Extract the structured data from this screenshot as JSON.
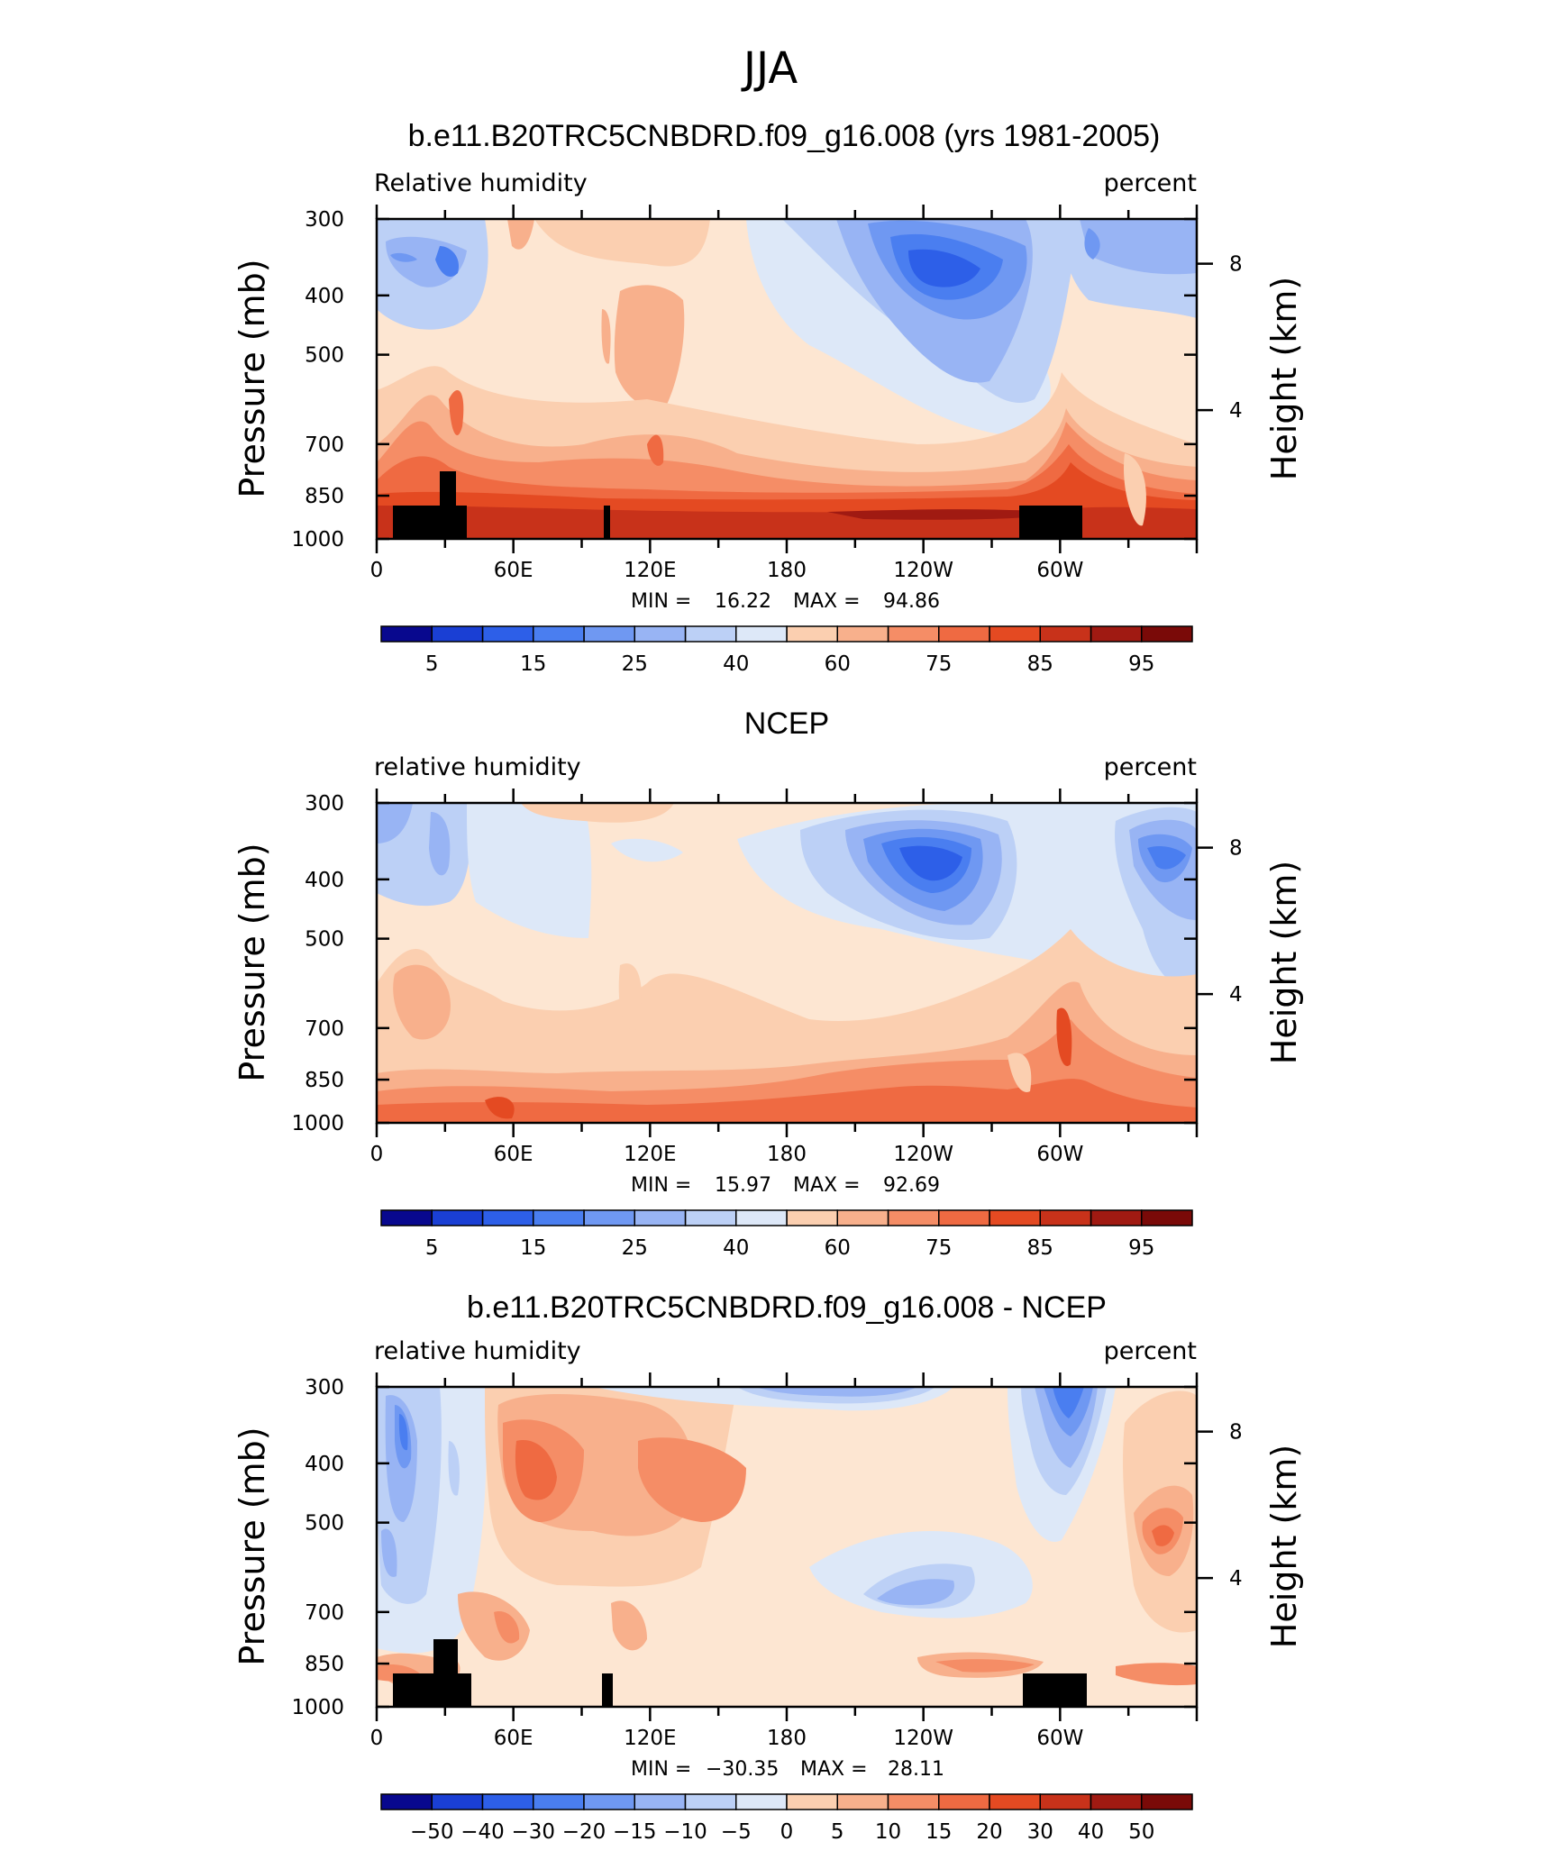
{
  "figure_title": "JJA",
  "chart_data": [
    {
      "type": "heatmap",
      "title": "b.e11.B20TRC5CNBDRD.f09_g16.008 (yrs 1981-2005)",
      "left_string": "Relative  humidity",
      "right_string": "percent",
      "ylabel": "Pressure  (mb)",
      "ylabel_right": "Height  (km)",
      "x_ticks": [
        "0",
        "60E",
        "120E",
        "180",
        "120W",
        "60W"
      ],
      "y_ticks": [
        "300",
        "400",
        "500",
        "700",
        "850",
        "1000"
      ],
      "y_ticks_right": [
        "4",
        "8"
      ],
      "min_label": "MIN =",
      "min_value": "16.22",
      "max_label": "MAX =",
      "max_value": "94.86",
      "colorbar_labels": [
        "5",
        "15",
        "25",
        "40",
        "60",
        "75",
        "85",
        "95"
      ],
      "colorbar_colors": [
        "#08088e",
        "#1a3fd4",
        "#2d5fe8",
        "#4a7ef0",
        "#6f98f2",
        "#98b4f4",
        "#bcd0f6",
        "#dde8f8",
        "#fde6d2",
        "#fbcfb0",
        "#f8b08c",
        "#f58d66",
        "#ef6a42",
        "#e44a22",
        "#c8321a",
        "#a01a12",
        "#7a0a08"
      ],
      "x_range": [
        0,
        360
      ],
      "y_range": [
        300,
        1000
      ],
      "has_terrain": true
    },
    {
      "type": "heatmap",
      "title": "NCEP",
      "left_string": "relative  humidity",
      "right_string": "percent",
      "ylabel": "Pressure  (mb)",
      "ylabel_right": "Height  (km)",
      "x_ticks": [
        "0",
        "60E",
        "120E",
        "180",
        "120W",
        "60W"
      ],
      "y_ticks": [
        "300",
        "400",
        "500",
        "700",
        "850",
        "1000"
      ],
      "y_ticks_right": [
        "4",
        "8"
      ],
      "min_label": "MIN =",
      "min_value": "15.97",
      "max_label": "MAX =",
      "max_value": "92.69",
      "colorbar_labels": [
        "5",
        "15",
        "25",
        "40",
        "60",
        "75",
        "85",
        "95"
      ],
      "colorbar_colors": [
        "#08088e",
        "#1a3fd4",
        "#2d5fe8",
        "#4a7ef0",
        "#6f98f2",
        "#98b4f4",
        "#bcd0f6",
        "#dde8f8",
        "#fde6d2",
        "#fbcfb0",
        "#f8b08c",
        "#f58d66",
        "#ef6a42",
        "#e44a22",
        "#c8321a",
        "#a01a12",
        "#7a0a08"
      ],
      "x_range": [
        0,
        360
      ],
      "y_range": [
        300,
        1000
      ],
      "has_terrain": false
    },
    {
      "type": "heatmap",
      "title": "b.e11.B20TRC5CNBDRD.f09_g16.008 - NCEP",
      "left_string": "relative  humidity",
      "right_string": "percent",
      "ylabel": "Pressure  (mb)",
      "ylabel_right": "Height  (km)",
      "x_ticks": [
        "0",
        "60E",
        "120E",
        "180",
        "120W",
        "60W"
      ],
      "y_ticks": [
        "300",
        "400",
        "500",
        "700",
        "850",
        "1000"
      ],
      "y_ticks_right": [
        "4",
        "8"
      ],
      "min_label": "MIN =",
      "min_value": "−30.35",
      "max_label": "MAX =",
      "max_value": "28.11",
      "colorbar_labels": [
        "−50",
        "−40",
        "−30",
        "−20",
        "−15",
        "−10",
        "−5",
        "0",
        "5",
        "10",
        "15",
        "20",
        "30",
        "40",
        "50"
      ],
      "colorbar_colors": [
        "#08088e",
        "#1a3fd4",
        "#2d5fe8",
        "#4a7ef0",
        "#6f98f2",
        "#98b4f4",
        "#bcd0f6",
        "#dde8f8",
        "#fde6d2",
        "#fbcfb0",
        "#f8b08c",
        "#f58d66",
        "#ef6a42",
        "#e44a22",
        "#c8321a",
        "#a01a12",
        "#7a0a08"
      ],
      "x_range": [
        0,
        360
      ],
      "y_range": [
        300,
        1000
      ],
      "has_terrain": true
    }
  ]
}
